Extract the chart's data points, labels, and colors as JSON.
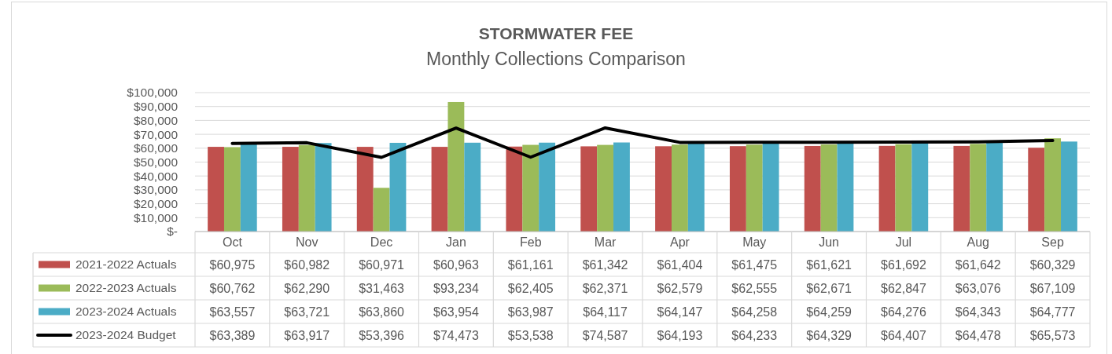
{
  "chart_data": {
    "type": "bar",
    "title": "STORMWATER FEE",
    "subtitle": "Monthly Collections Comparison",
    "categories": [
      "Oct",
      "Nov",
      "Dec",
      "Jan",
      "Feb",
      "Mar",
      "Apr",
      "May",
      "Jun",
      "Jul",
      "Aug",
      "Sep"
    ],
    "series": [
      {
        "name": "2021-2022 Actuals",
        "color": "#c0504d",
        "values": [
          60975,
          60982,
          60971,
          60963,
          61161,
          61342,
          61404,
          61475,
          61621,
          61692,
          61642,
          60329
        ],
        "value_labels": [
          "$60,975",
          "$60,982",
          "$60,971",
          "$60,963",
          "$61,161",
          "$61,342",
          "$61,404",
          "$61,475",
          "$61,621",
          "$61,692",
          "$61,642",
          "$60,329"
        ]
      },
      {
        "name": "2022-2023 Actuals",
        "color": "#9bbb59",
        "values": [
          60762,
          62290,
          31463,
          93234,
          62405,
          62371,
          62579,
          62555,
          62671,
          62847,
          63076,
          67109
        ],
        "value_labels": [
          "$60,762",
          "$62,290",
          "$31,463",
          "$93,234",
          "$62,405",
          "$62,371",
          "$62,579",
          "$62,555",
          "$62,671",
          "$62,847",
          "$63,076",
          "$67,109"
        ]
      },
      {
        "name": "2023-2024 Actuals",
        "color": "#4bacc6",
        "values": [
          63557,
          63721,
          63860,
          63954,
          63987,
          64117,
          64147,
          64258,
          64259,
          64276,
          64343,
          64777
        ],
        "value_labels": [
          "$63,557",
          "$63,721",
          "$63,860",
          "$63,954",
          "$63,987",
          "$64,117",
          "$64,147",
          "$64,258",
          "$64,259",
          "$64,276",
          "$64,343",
          "$64,777"
        ]
      },
      {
        "name": "2023-2024 Budget",
        "type": "line",
        "color": "#000000",
        "line_style": "solid",
        "values": [
          63389,
          63917,
          53396,
          74473,
          53538,
          74587,
          64193,
          64233,
          64329,
          64407,
          64478,
          65573
        ],
        "value_labels": [
          "$63,389",
          "$63,917",
          "$53,396",
          "$74,473",
          "$53,538",
          "$74,587",
          "$64,193",
          "$64,233",
          "$64,329",
          "$64,407",
          "$64,478",
          "$65,573"
        ]
      }
    ],
    "ylim": [
      0,
      100000
    ],
    "yticks": [
      {
        "value": 0,
        "label": "$-"
      },
      {
        "value": 10000,
        "label": "$10,000"
      },
      {
        "value": 20000,
        "label": "$20,000"
      },
      {
        "value": 30000,
        "label": "$30,000"
      },
      {
        "value": 40000,
        "label": "$40,000"
      },
      {
        "value": 50000,
        "label": "$50,000"
      },
      {
        "value": 60000,
        "label": "$60,000"
      },
      {
        "value": 70000,
        "label": "$70,000"
      },
      {
        "value": 80000,
        "label": "$80,000"
      },
      {
        "value": 90000,
        "label": "$90,000"
      },
      {
        "value": 100000,
        "label": "$100,000"
      }
    ],
    "grid": "y",
    "legend": "bottom",
    "marker": "none"
  }
}
